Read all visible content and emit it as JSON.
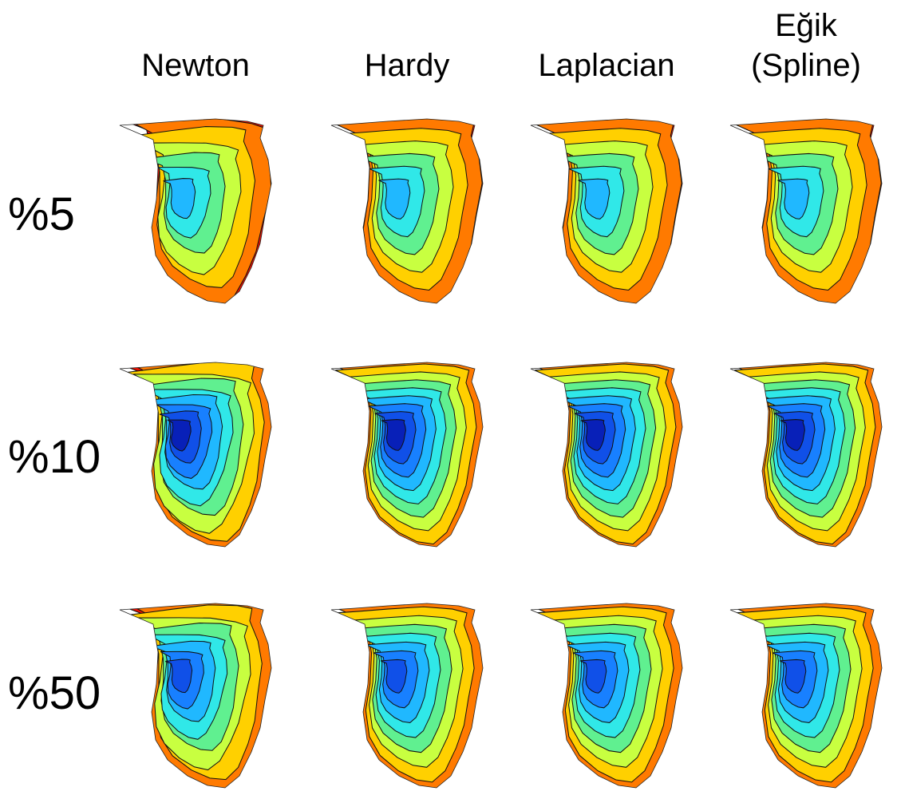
{
  "columns": [
    [
      "Newton"
    ],
    [
      "Hardy"
    ],
    [
      "Laplacian"
    ],
    [
      "Eğik",
      "(Spline)"
    ]
  ],
  "rows": [
    "%5",
    "%10",
    "%50"
  ]
}
